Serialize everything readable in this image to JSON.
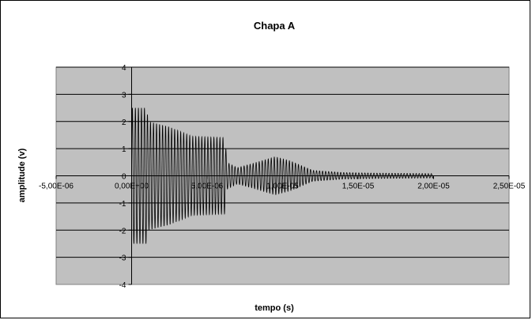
{
  "chart_data": {
    "type": "line",
    "title": "Chapa A",
    "xlabel": "tempo (s)",
    "ylabel": "amplitude (v)",
    "xlim": [
      -5e-06,
      2.5e-05
    ],
    "ylim": [
      -4,
      4
    ],
    "x_ticks": [
      -5e-06,
      0,
      5e-06,
      1e-05,
      1.5e-05,
      2e-05,
      2.5e-05
    ],
    "x_tick_labels": [
      "-5,00E-06",
      "0,00E+00",
      "5,00E-06",
      "1,00E-05",
      "1,50E-05",
      "2,00E-05",
      "2,50E-05"
    ],
    "y_ticks": [
      -4,
      -3,
      -2,
      -1,
      0,
      1,
      2,
      3,
      4
    ],
    "y_tick_labels": [
      "-4",
      "-3",
      "-2",
      "-1",
      "0",
      "1",
      "2",
      "3",
      "4"
    ],
    "grid": "horizontal",
    "legend": "none",
    "plot_background": "#c0c0c0",
    "line_color": "#000000",
    "series": [
      {
        "envelope": [
          {
            "x": 0.0,
            "y": 2.5
          },
          {
            "x": 1e-06,
            "y": 2.5
          },
          {
            "x": 1.1e-06,
            "y": 2.0
          },
          {
            "x": 2.5e-06,
            "y": 1.8
          },
          {
            "x": 4e-06,
            "y": 1.45
          },
          {
            "x": 6.2e-06,
            "y": 1.4
          },
          {
            "x": 6.3e-06,
            "y": 0.5
          },
          {
            "x": 7e-06,
            "y": 0.3
          },
          {
            "x": 8e-06,
            "y": 0.45
          },
          {
            "x": 9.5e-06,
            "y": 0.7
          },
          {
            "x": 1.05e-05,
            "y": 0.55
          },
          {
            "x": 1.2e-05,
            "y": 0.2
          },
          {
            "x": 1.4e-05,
            "y": 0.12
          },
          {
            "x": 1.6e-05,
            "y": 0.1
          },
          {
            "x": 2e-05,
            "y": 0.08
          }
        ],
        "oscillation_period": 2e-07,
        "x_end": 2e-05
      }
    ]
  }
}
